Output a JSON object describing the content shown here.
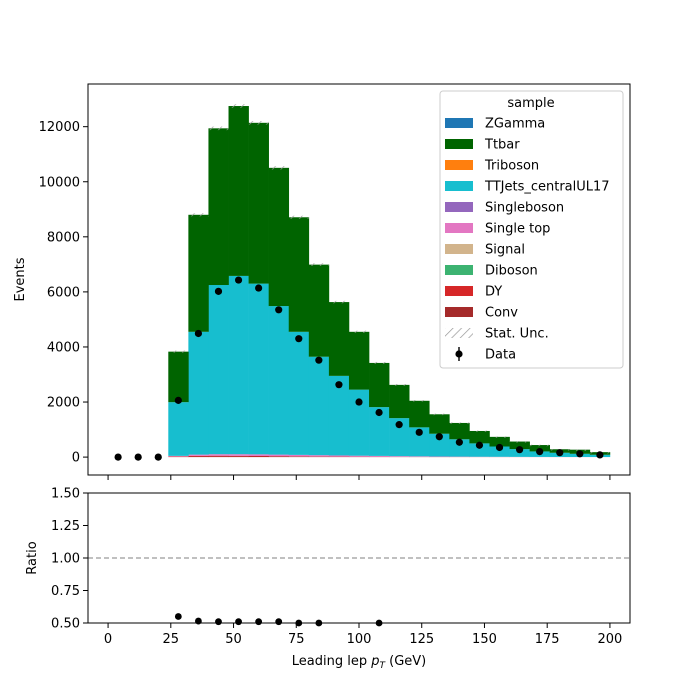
{
  "chart_data": [
    {
      "type": "bar",
      "subtype": "stacked-step-histogram",
      "xlabel": "Leading lep",
      "xlabel_math_symbol": "p",
      "xlabel_math_subscript": "T",
      "xlabel_unit": "(GeV)",
      "ylabel": "Events",
      "xlim": [
        -8,
        208
      ],
      "ylim": [
        -650,
        13550
      ],
      "xticks": [
        0,
        25,
        50,
        75,
        100,
        125,
        150,
        175,
        200
      ],
      "yticks": [
        0,
        2000,
        4000,
        6000,
        8000,
        10000,
        12000
      ],
      "bin_edges": [
        0,
        8,
        16,
        24,
        32,
        40,
        48,
        56,
        64,
        72,
        80,
        88,
        96,
        104,
        112,
        120,
        128,
        136,
        144,
        152,
        160,
        168,
        176,
        184,
        192,
        200
      ],
      "series": [
        {
          "name": "Conv",
          "color": "#a52a2a",
          "values": [
            0,
            0,
            0,
            10,
            20,
            25,
            25,
            22,
            20,
            18,
            15,
            12,
            10,
            8,
            6,
            5,
            4,
            3,
            2,
            2,
            1,
            1,
            1,
            0,
            0
          ]
        },
        {
          "name": "DY",
          "color": "#d62728",
          "values": [
            0,
            0,
            0,
            15,
            25,
            25,
            20,
            18,
            15,
            12,
            10,
            8,
            6,
            5,
            4,
            3,
            2,
            2,
            1,
            1,
            1,
            0,
            0,
            0,
            0
          ]
        },
        {
          "name": "Diboson",
          "color": "#3cb371",
          "values": [
            0,
            0,
            0,
            0,
            0,
            0,
            0,
            0,
            0,
            0,
            0,
            0,
            0,
            0,
            0,
            0,
            0,
            0,
            0,
            0,
            0,
            0,
            0,
            0,
            0
          ]
        },
        {
          "name": "Signal",
          "color": "#d2b48c",
          "values": [
            0,
            0,
            0,
            0,
            0,
            0,
            0,
            0,
            0,
            0,
            0,
            0,
            0,
            0,
            0,
            0,
            0,
            0,
            0,
            0,
            0,
            0,
            0,
            0,
            0
          ]
        },
        {
          "name": "Single top",
          "color": "#e377c2",
          "values": [
            0,
            0,
            0,
            20,
            45,
            55,
            60,
            60,
            55,
            50,
            45,
            40,
            35,
            30,
            25,
            20,
            15,
            12,
            10,
            8,
            6,
            5,
            4,
            3,
            2
          ]
        },
        {
          "name": "Singleboson",
          "color": "#9467bd",
          "values": [
            0,
            0,
            0,
            0,
            0,
            0,
            0,
            0,
            0,
            0,
            0,
            0,
            0,
            0,
            0,
            0,
            0,
            0,
            0,
            0,
            0,
            0,
            0,
            0,
            0
          ]
        },
        {
          "name": "TTJets_centralUL17",
          "color": "#17becf",
          "values": [
            0,
            0,
            0,
            1950,
            4460,
            6145,
            6475,
            6200,
            5395,
            4470,
            3575,
            2890,
            2399,
            1772,
            1380,
            1052,
            827,
            630,
            485,
            374,
            282,
            200,
            152,
            117,
            83
          ]
        },
        {
          "name": "Triboson",
          "color": "#ff7f0e",
          "values": [
            0,
            0,
            0,
            0,
            0,
            0,
            0,
            0,
            0,
            0,
            0,
            0,
            0,
            0,
            0,
            0,
            0,
            0,
            0,
            0,
            0,
            0,
            0,
            0,
            0
          ]
        },
        {
          "name": "Ttbar",
          "color": "#006400",
          "values": [
            0,
            0,
            0,
            1835,
            4250,
            5690,
            6170,
            5840,
            5020,
            4160,
            3345,
            2680,
            2100,
            1605,
            1208,
            965,
            707,
            593,
            451,
            350,
            275,
            232,
            128,
            150,
            95
          ]
        },
        {
          "name": "ZGamma",
          "color": "#1f77b4",
          "values": [
            0,
            0,
            0,
            0,
            0,
            0,
            0,
            0,
            0,
            0,
            0,
            0,
            0,
            0,
            0,
            0,
            0,
            0,
            0,
            0,
            0,
            0,
            0,
            0,
            0
          ]
        }
      ],
      "stat_unc": {
        "name": "Stat. Unc.",
        "style": "hatch"
      },
      "data": {
        "name": "Data",
        "x": [
          4,
          12,
          20,
          28,
          36,
          44,
          52,
          60,
          68,
          76,
          84,
          92,
          100,
          108,
          116,
          124,
          132,
          140,
          148,
          156,
          164,
          172,
          180,
          188,
          196
        ],
        "y": [
          0,
          0,
          0,
          2060,
          4490,
          6020,
          6430,
          6140,
          5350,
          4300,
          3520,
          2630,
          2000,
          1620,
          1180,
          900,
          740,
          540,
          430,
          350,
          270,
          200,
          160,
          120,
          80
        ]
      },
      "legend": {
        "title": "sample",
        "position": "upper right",
        "order": [
          "ZGamma",
          "Ttbar",
          "Triboson",
          "TTJets_centralUL17",
          "Singleboson",
          "Single top",
          "Signal",
          "Diboson",
          "DY",
          "Conv",
          "Stat. Unc.",
          "Data"
        ]
      }
    },
    {
      "type": "scatter",
      "ylabel": "Ratio",
      "xlim": [
        -8,
        208
      ],
      "ylim": [
        0.5,
        1.5
      ],
      "xticks": [
        0,
        25,
        50,
        75,
        100,
        125,
        150,
        175,
        200
      ],
      "yticks": [
        "0.50",
        "0.75",
        "1.00",
        "1.25",
        "1.50"
      ],
      "reference_line": 1.0,
      "points": {
        "x": [
          28,
          36,
          44,
          52,
          60,
          68,
          76,
          84,
          108
        ],
        "y": [
          0.55,
          0.515,
          0.51,
          0.51,
          0.51,
          0.51,
          0.5,
          0.5,
          0.5
        ]
      }
    }
  ]
}
